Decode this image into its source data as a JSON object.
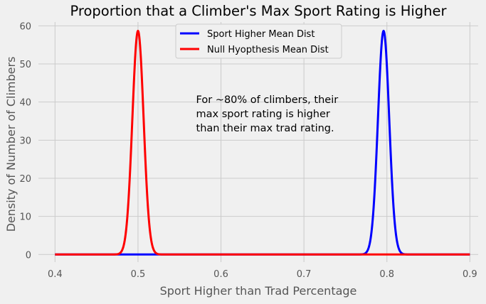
{
  "chart_data": {
    "type": "line",
    "title": "Proportion that a Climber's Max Sport Rating is Higher",
    "xlabel": "Sport Higher than Trad Percentage",
    "ylabel": "Density of Number of Climbers",
    "xlim": [
      0.38,
      0.91
    ],
    "ylim": [
      -2,
      61
    ],
    "xticks": [
      0.4,
      0.5,
      0.6,
      0.7,
      0.8,
      0.9
    ],
    "xtick_labels": [
      "0.4",
      "0.5",
      "0.6",
      "0.7",
      "0.8",
      "0.9"
    ],
    "yticks": [
      0,
      10,
      20,
      30,
      40,
      50,
      60
    ],
    "ytick_labels": [
      "0",
      "10",
      "20",
      "30",
      "40",
      "50",
      "60"
    ],
    "grid": true,
    "legend_position": "top-center",
    "annotation": [
      "For ~80% of climbers, their",
      "max sport rating is higher",
      "than their max trad rating."
    ],
    "annotation_anchor": [
      0.57,
      36
    ],
    "x_range": [
      0.4,
      0.9
    ],
    "series": [
      {
        "name": "Sport Higher Mean Dist",
        "color": "#0000ff",
        "mean": 0.796,
        "sd": 0.0068
      },
      {
        "name": "Null Hyopthesis Mean Dist",
        "color": "#ff0000",
        "mean": 0.5,
        "sd": 0.0068
      }
    ]
  }
}
